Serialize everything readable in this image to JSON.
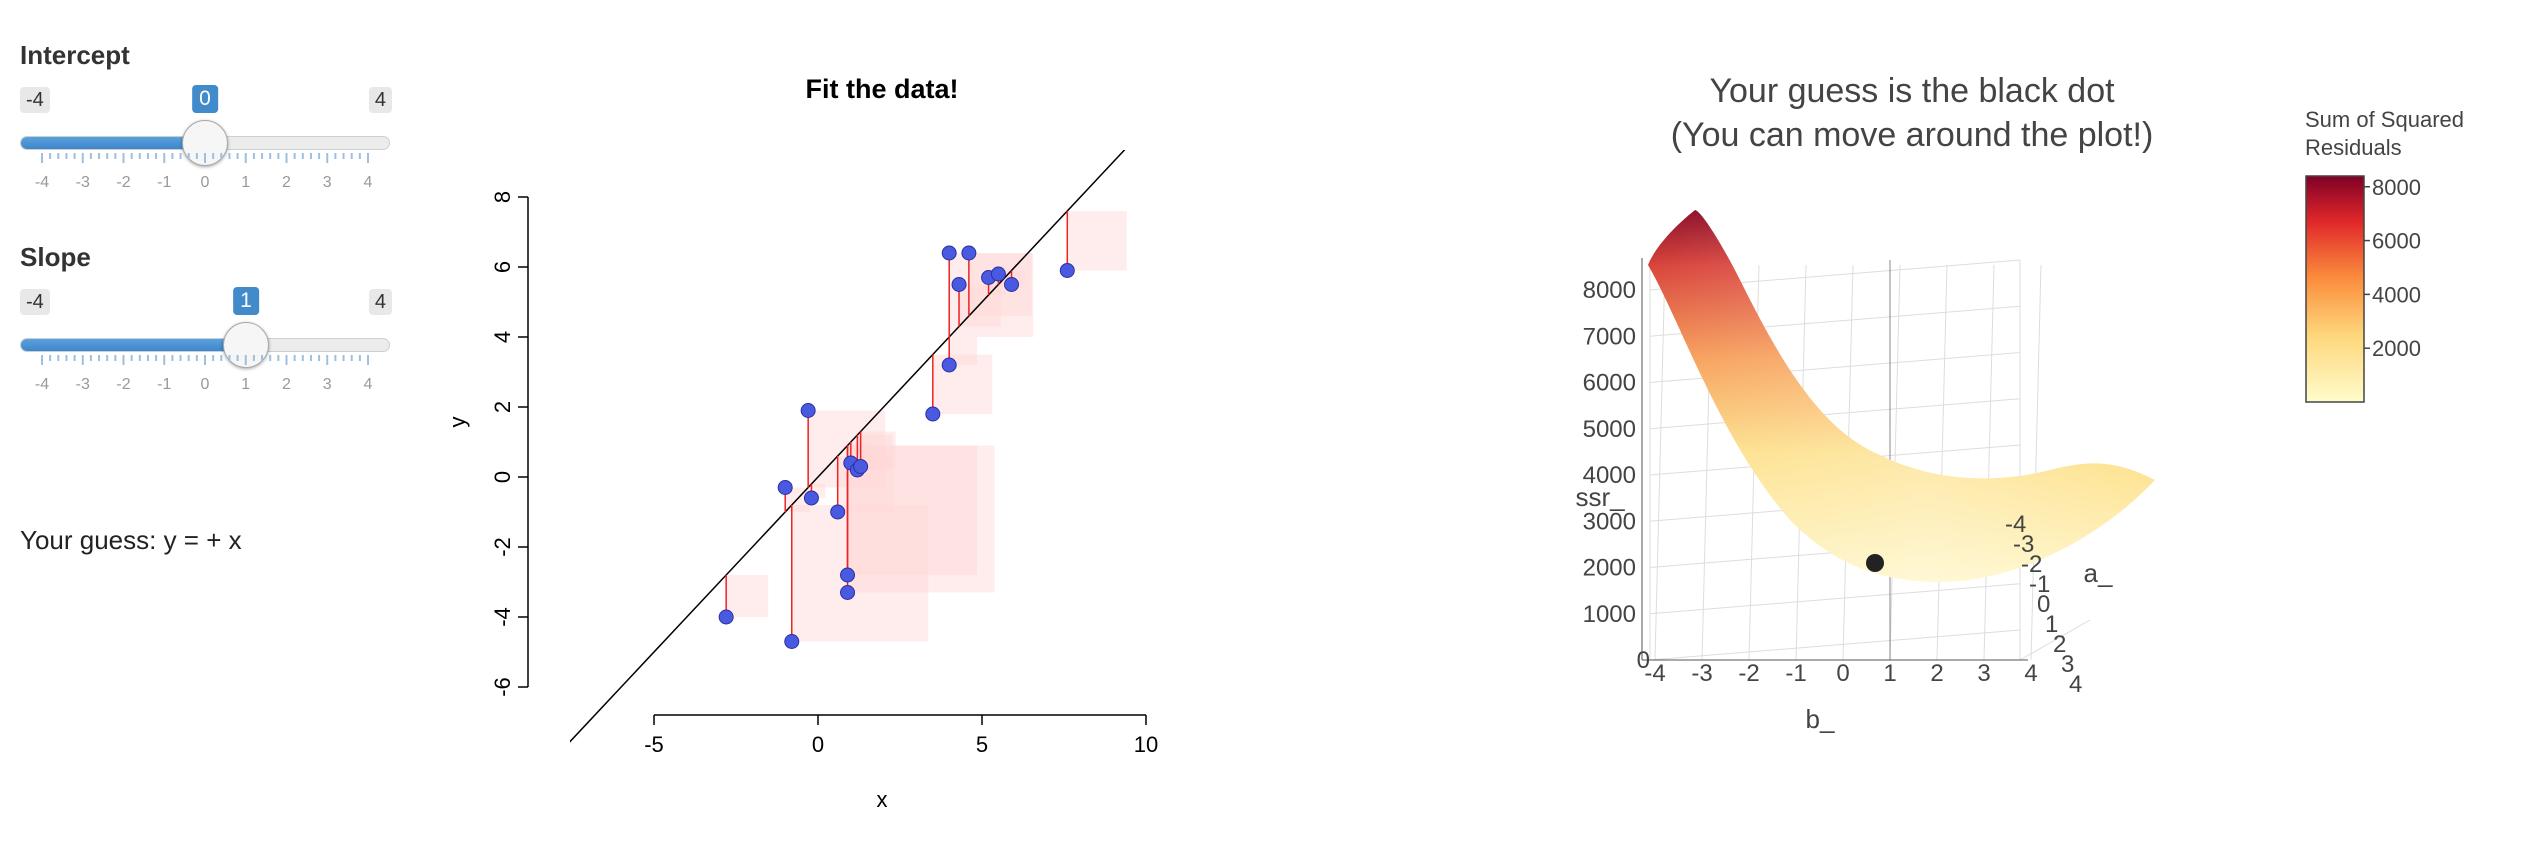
{
  "sliders": [
    {
      "label": "Intercept",
      "min": -4,
      "max": 4,
      "min_text": "-4",
      "max_text": "4",
      "value": 0,
      "value_text": "0",
      "ticks": [
        "-4",
        "-3",
        "-2",
        "-1",
        "0",
        "1",
        "2",
        "3",
        "4"
      ]
    },
    {
      "label": "Slope",
      "min": -4,
      "max": 4,
      "min_text": "-4",
      "max_text": "4",
      "value": 1,
      "value_text": "1",
      "ticks": [
        "-4",
        "-3",
        "-2",
        "-1",
        "0",
        "1",
        "2",
        "3",
        "4"
      ]
    }
  ],
  "guess_text": "Your guess: y = + x",
  "chart_data": [
    {
      "type": "scatter",
      "title": "Fit the data!",
      "xlabel": "x",
      "ylabel": "y",
      "xlim": [
        -5,
        10
      ],
      "ylim": [
        -6,
        8
      ],
      "xticks": [
        "-5",
        "0",
        "5",
        "10"
      ],
      "yticks": [
        "-6",
        "-4",
        "-2",
        "0",
        "2",
        "4",
        "6",
        "8"
      ],
      "line": {
        "intercept": 0,
        "slope": 1
      },
      "points": [
        {
          "x": -2.8,
          "y": -4.0
        },
        {
          "x": -1.0,
          "y": -0.3
        },
        {
          "x": -0.8,
          "y": -4.7
        },
        {
          "x": -0.3,
          "y": 1.9
        },
        {
          "x": -0.2,
          "y": -0.6
        },
        {
          "x": 0.6,
          "y": -1.0
        },
        {
          "x": 0.9,
          "y": -2.8
        },
        {
          "x": 0.9,
          "y": -3.3
        },
        {
          "x": 1.0,
          "y": 0.4
        },
        {
          "x": 1.2,
          "y": 0.2
        },
        {
          "x": 1.3,
          "y": 0.3
        },
        {
          "x": 3.5,
          "y": 1.8
        },
        {
          "x": 4.0,
          "y": 3.2
        },
        {
          "x": 4.0,
          "y": 6.4
        },
        {
          "x": 4.3,
          "y": 5.5
        },
        {
          "x": 4.6,
          "y": 6.4
        },
        {
          "x": 5.2,
          "y": 5.7
        },
        {
          "x": 5.5,
          "y": 5.8
        },
        {
          "x": 5.9,
          "y": 5.5
        },
        {
          "x": 7.6,
          "y": 5.9
        }
      ],
      "colors": {
        "point": "#4a5ae0",
        "residual": "#ee2222",
        "square": "#ffd6d6"
      }
    },
    {
      "type": "surface3d",
      "title_lines": [
        "Your guess is the black dot",
        "(You can move around the plot!)"
      ],
      "xlabel": "b_",
      "ylabel": "a_",
      "zlabel": "ssr_",
      "b_ticks": [
        "-4",
        "-3",
        "-2",
        "-1",
        "0",
        "1",
        "2",
        "3",
        "4"
      ],
      "a_ticks": [
        "-4",
        "-3",
        "-2",
        "-1",
        "0",
        "1",
        "2",
        "3",
        "4"
      ],
      "z_ticks": [
        "0",
        "1000",
        "2000",
        "3000",
        "4000",
        "5000",
        "6000",
        "7000",
        "8000"
      ],
      "guess": {
        "a": 0,
        "b": 1
      },
      "colorbar": {
        "title_lines": [
          "Sum of Squared",
          "Residuals"
        ],
        "ticks": [
          "8000",
          "6000",
          "4000",
          "2000"
        ],
        "min": 0,
        "max": 8400
      },
      "colors": {
        "low": "#fff6c8",
        "mid": "#f7a05a",
        "high": "#8a0a25",
        "dot": "#222222"
      }
    }
  ]
}
